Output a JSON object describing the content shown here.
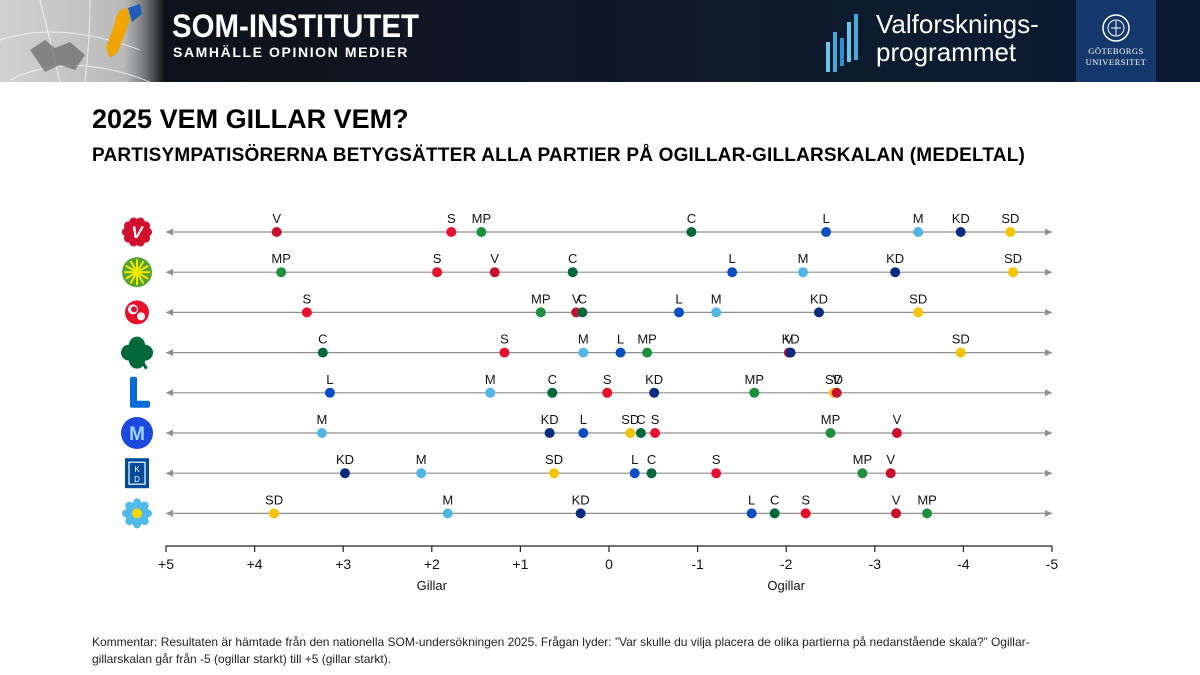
{
  "header": {
    "som_title": "SOM-INSTITUTET",
    "som_subtitle": "SAMHÄLLE OPINION MEDIER",
    "vf_line1": "Valforsknings-",
    "vf_line2": "programmet",
    "gu_line1": "GÖTEBORGS",
    "gu_line2": "UNIVERSITET"
  },
  "title": "2025 VEM GILLAR VEM?",
  "subtitle": "PARTISYMPATISÖRERNA BETYGSÄTTER ALLA PARTIER PÅ OGILLAR-GILLARSKALAN (MEDELTAL)",
  "comment": "Kommentar: Resultaten är hämtade från den nationella SOM-undersökningen 2025. Frågan lyder: ”Var skulle du vilja placera de olika partierna på nedanstående skala?” Ogillar-gillarskalan går från -5 (ogillar starkt) till +5 (gillar starkt).",
  "colors": {
    "V": "#c8102e",
    "S": "#e8112d",
    "MP": "#1e8f3c",
    "C": "#00683a",
    "L": "#0a4fc2",
    "M": "#52b6e5",
    "KD": "#0a2c80",
    "SD": "#f5c400"
  },
  "chart_data": {
    "type": "scatter",
    "title": "2025 VEM GILLAR VEM?",
    "xlabel_left": "Gillar",
    "xlabel_right": "Ogillar",
    "xlim": [
      5,
      -5
    ],
    "ticks": [
      "+5",
      "+4",
      "+3",
      "+2",
      "+1",
      "0",
      "-1",
      "-2",
      "-3",
      "-4",
      "-5"
    ],
    "tick_values": [
      5,
      4,
      3,
      2,
      1,
      0,
      -1,
      -2,
      -3,
      -4,
      -5
    ],
    "rows": [
      {
        "party": "V",
        "icon": "v-party-icon",
        "points": [
          {
            "label": "V",
            "value": 3.75
          },
          {
            "label": "S",
            "value": 1.78
          },
          {
            "label": "MP",
            "value": 1.44
          },
          {
            "label": "C",
            "value": -0.93
          },
          {
            "label": "L",
            "value": -2.45
          },
          {
            "label": "M",
            "value": -3.49
          },
          {
            "label": "KD",
            "value": -3.97
          },
          {
            "label": "SD",
            "value": -4.53
          }
        ]
      },
      {
        "party": "MP",
        "icon": "mp-party-icon",
        "points": [
          {
            "label": "MP",
            "value": 3.7
          },
          {
            "label": "S",
            "value": 1.94
          },
          {
            "label": "V",
            "value": 1.29
          },
          {
            "label": "C",
            "value": 0.41
          },
          {
            "label": "L",
            "value": -1.39
          },
          {
            "label": "M",
            "value": -2.19
          },
          {
            "label": "KD",
            "value": -3.23
          },
          {
            "label": "SD",
            "value": -4.56
          }
        ]
      },
      {
        "party": "S",
        "icon": "s-party-icon",
        "points": [
          {
            "label": "S",
            "value": 3.41
          },
          {
            "label": "MP",
            "value": 0.77
          },
          {
            "label": "V",
            "value": 0.37
          },
          {
            "label": "C",
            "value": 0.3
          },
          {
            "label": "L",
            "value": -0.79
          },
          {
            "label": "M",
            "value": -1.21
          },
          {
            "label": "KD",
            "value": -2.37
          },
          {
            "label": "SD",
            "value": -3.49
          }
        ]
      },
      {
        "party": "C",
        "icon": "c-party-icon",
        "points": [
          {
            "label": "C",
            "value": 3.23
          },
          {
            "label": "S",
            "value": 1.18
          },
          {
            "label": "M",
            "value": 0.29
          },
          {
            "label": "L",
            "value": -0.13
          },
          {
            "label": "MP",
            "value": -0.43
          },
          {
            "label": "V",
            "value": -2.03
          },
          {
            "label": "KD",
            "value": -2.05
          },
          {
            "label": "SD",
            "value": -3.97
          }
        ]
      },
      {
        "party": "L",
        "icon": "l-party-icon",
        "points": [
          {
            "label": "L",
            "value": 3.15
          },
          {
            "label": "M",
            "value": 1.34
          },
          {
            "label": "C",
            "value": 0.64
          },
          {
            "label": "S",
            "value": 0.02
          },
          {
            "label": "KD",
            "value": -0.51
          },
          {
            "label": "MP",
            "value": -1.64
          },
          {
            "label": "SD",
            "value": -2.54
          },
          {
            "label": "V",
            "value": -2.57
          }
        ]
      },
      {
        "party": "M",
        "icon": "m-party-icon",
        "points": [
          {
            "label": "M",
            "value": 3.24
          },
          {
            "label": "KD",
            "value": 0.67
          },
          {
            "label": "L",
            "value": 0.29
          },
          {
            "label": "SD",
            "value": -0.24
          },
          {
            "label": "C",
            "value": -0.36
          },
          {
            "label": "S",
            "value": -0.52
          },
          {
            "label": "MP",
            "value": -2.5
          },
          {
            "label": "V",
            "value": -3.25
          }
        ]
      },
      {
        "party": "KD",
        "icon": "kd-party-icon",
        "points": [
          {
            "label": "KD",
            "value": 2.98
          },
          {
            "label": "M",
            "value": 2.12
          },
          {
            "label": "SD",
            "value": 0.62
          },
          {
            "label": "L",
            "value": -0.29
          },
          {
            "label": "C",
            "value": -0.48
          },
          {
            "label": "S",
            "value": -1.21
          },
          {
            "label": "MP",
            "value": -2.86
          },
          {
            "label": "V",
            "value": -3.18
          }
        ]
      },
      {
        "party": "SD",
        "icon": "sd-party-icon",
        "points": [
          {
            "label": "SD",
            "value": 3.78
          },
          {
            "label": "M",
            "value": 1.82
          },
          {
            "label": "KD",
            "value": 0.32
          },
          {
            "label": "L",
            "value": -1.61
          },
          {
            "label": "C",
            "value": -1.87
          },
          {
            "label": "S",
            "value": -2.22
          },
          {
            "label": "V",
            "value": -3.24
          },
          {
            "label": "MP",
            "value": -3.59
          }
        ]
      }
    ]
  }
}
